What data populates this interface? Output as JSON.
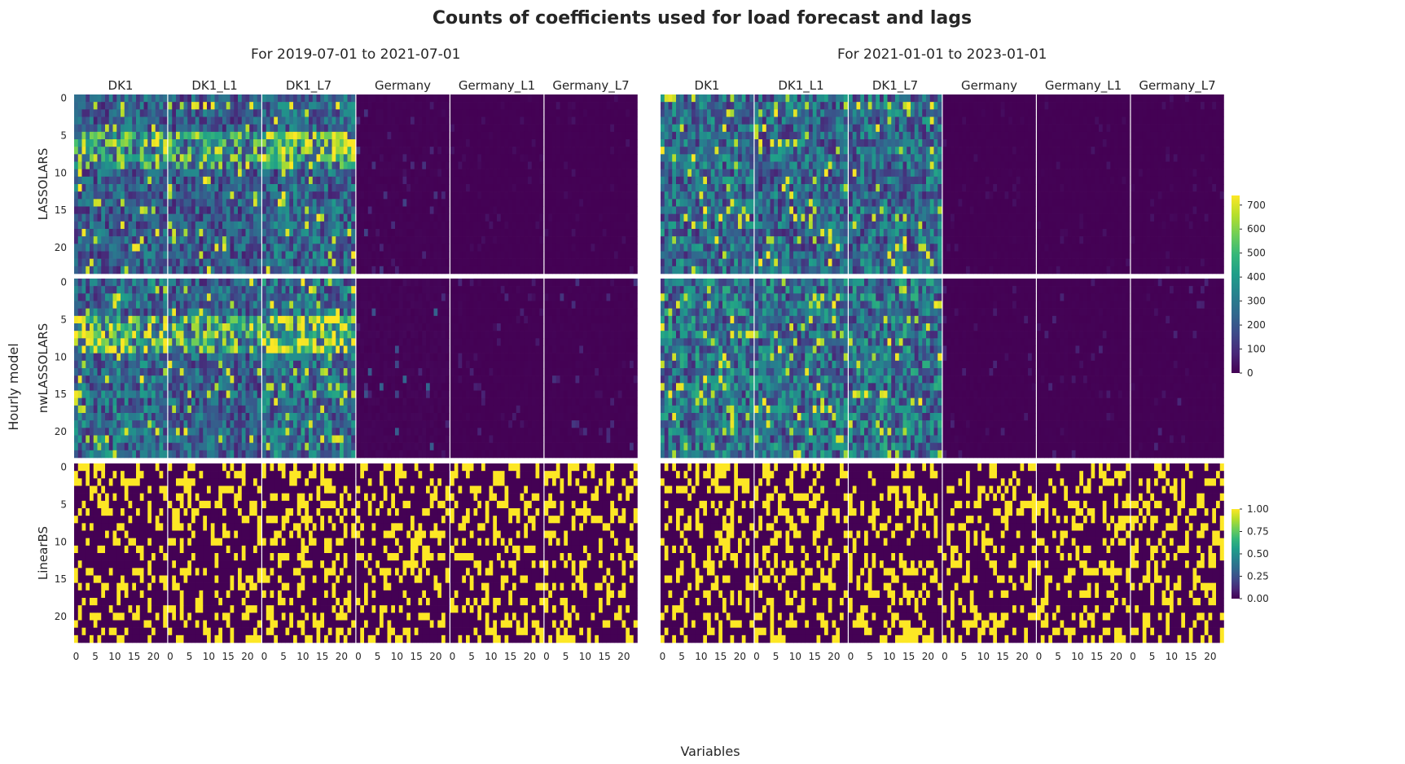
{
  "figure": {
    "title": "Counts of coefficients used for load forecast and lags",
    "xlabel": "Variables",
    "ylabel": "Hourly model"
  },
  "chart_data": {
    "type": "heatmap",
    "title": "Counts of coefficients used for load forecast and lags",
    "periods": [
      "For 2019-07-01 to 2021-07-01",
      "For 2021-01-01 to 2023-01-01"
    ],
    "columns": [
      "DK1",
      "DK1_L1",
      "DK1_L7",
      "Germany",
      "Germany_L1",
      "Germany_L7"
    ],
    "rows": [
      "LASSOLARS",
      "nwLASSOLARS",
      "LinearBS"
    ],
    "x_ticks": [
      0,
      5,
      10,
      15,
      20
    ],
    "y_ticks": [
      0,
      5,
      10,
      15,
      20
    ],
    "cells_per_panel": {
      "x": 24,
      "y": 24
    },
    "colormap": "viridis",
    "colors": {
      "low": "#440154",
      "mid": "#21918c",
      "high": "#fde725"
    },
    "colorbars": [
      {
        "rows": [
          "LASSOLARS",
          "nwLASSOLARS"
        ],
        "min": 0,
        "max": 740,
        "ticks": [
          "0",
          "100",
          "200",
          "300",
          "400",
          "500",
          "600",
          "700"
        ]
      },
      {
        "rows": [
          "LinearBS"
        ],
        "min": 0,
        "max": 1,
        "ticks": [
          "0.00",
          "0.25",
          "0.50",
          "0.75",
          "1.00"
        ]
      }
    ],
    "panel_summary": {
      "description": "Approximate pattern: DK1/DK1_L1/DK1_L7 panels show high counts (hours 5-9 band strongest in first period) for LASSOLARS and nwLASSOLARS; Germany panels mostly near 0; LinearBS panels are binary 0/1 selections.",
      "mean_level": {
        "LASSOLARS": {
          "period1": [
            260,
            250,
            280,
            20,
            5,
            5
          ],
          "period2": [
            300,
            290,
            300,
            5,
            5,
            5
          ]
        },
        "nwLASSOLARS": {
          "period1": [
            300,
            260,
            320,
            30,
            10,
            15
          ],
          "period2": [
            330,
            320,
            330,
            10,
            10,
            10
          ]
        },
        "LinearBS": {
          "period1": [
            0.3,
            0.3,
            0.3,
            0.3,
            0.3,
            0.3
          ],
          "period2": [
            0.3,
            0.3,
            0.3,
            0.3,
            0.3,
            0.3
          ]
        }
      }
    }
  }
}
